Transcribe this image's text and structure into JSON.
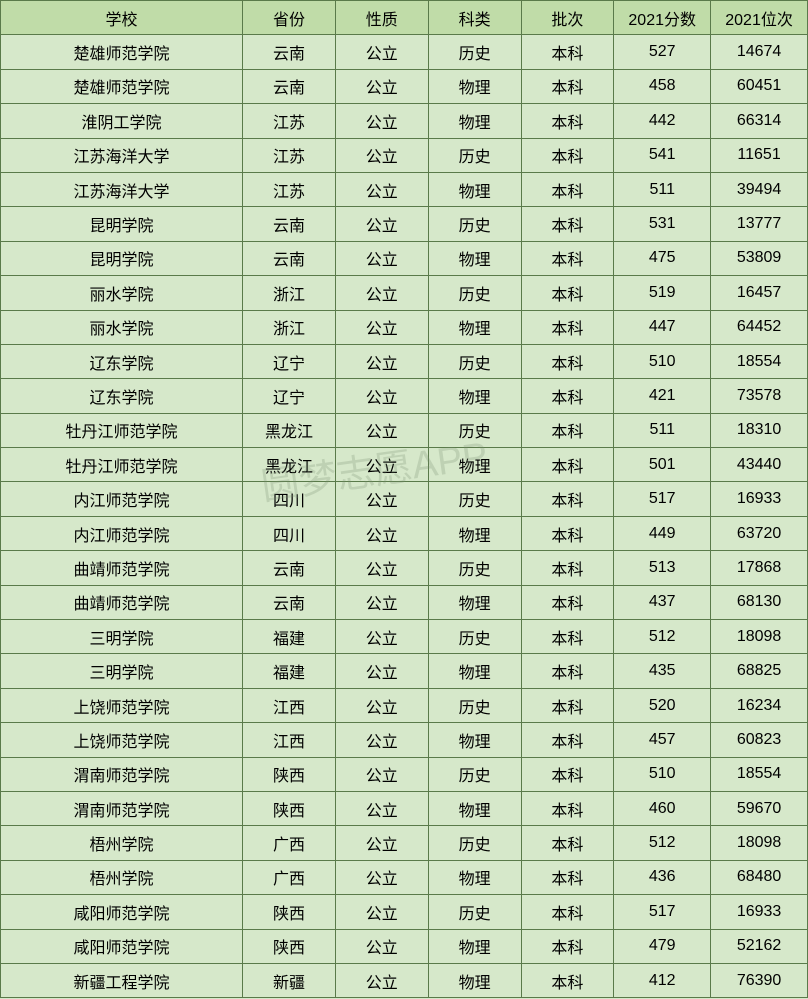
{
  "table": {
    "columns": [
      "学校",
      "省份",
      "性质",
      "科类",
      "批次",
      "2021分数",
      "2021位次"
    ],
    "column_widths": [
      "30%",
      "11.5%",
      "11.5%",
      "11.5%",
      "11.5%",
      "12%",
      "12%"
    ],
    "header_bg": "#c0dca8",
    "cell_bg": "#d6e8ca",
    "border_color": "#5a7a4a",
    "font_size": 16,
    "row_height": 34.4,
    "rows": [
      [
        "楚雄师范学院",
        "云南",
        "公立",
        "历史",
        "本科",
        "527",
        "14674"
      ],
      [
        "楚雄师范学院",
        "云南",
        "公立",
        "物理",
        "本科",
        "458",
        "60451"
      ],
      [
        "淮阴工学院",
        "江苏",
        "公立",
        "物理",
        "本科",
        "442",
        "66314"
      ],
      [
        "江苏海洋大学",
        "江苏",
        "公立",
        "历史",
        "本科",
        "541",
        "11651"
      ],
      [
        "江苏海洋大学",
        "江苏",
        "公立",
        "物理",
        "本科",
        "511",
        "39494"
      ],
      [
        "昆明学院",
        "云南",
        "公立",
        "历史",
        "本科",
        "531",
        "13777"
      ],
      [
        "昆明学院",
        "云南",
        "公立",
        "物理",
        "本科",
        "475",
        "53809"
      ],
      [
        "丽水学院",
        "浙江",
        "公立",
        "历史",
        "本科",
        "519",
        "16457"
      ],
      [
        "丽水学院",
        "浙江",
        "公立",
        "物理",
        "本科",
        "447",
        "64452"
      ],
      [
        "辽东学院",
        "辽宁",
        "公立",
        "历史",
        "本科",
        "510",
        "18554"
      ],
      [
        "辽东学院",
        "辽宁",
        "公立",
        "物理",
        "本科",
        "421",
        "73578"
      ],
      [
        "牡丹江师范学院",
        "黑龙江",
        "公立",
        "历史",
        "本科",
        "511",
        "18310"
      ],
      [
        "牡丹江师范学院",
        "黑龙江",
        "公立",
        "物理",
        "本科",
        "501",
        "43440"
      ],
      [
        "内江师范学院",
        "四川",
        "公立",
        "历史",
        "本科",
        "517",
        "16933"
      ],
      [
        "内江师范学院",
        "四川",
        "公立",
        "物理",
        "本科",
        "449",
        "63720"
      ],
      [
        "曲靖师范学院",
        "云南",
        "公立",
        "历史",
        "本科",
        "513",
        "17868"
      ],
      [
        "曲靖师范学院",
        "云南",
        "公立",
        "物理",
        "本科",
        "437",
        "68130"
      ],
      [
        "三明学院",
        "福建",
        "公立",
        "历史",
        "本科",
        "512",
        "18098"
      ],
      [
        "三明学院",
        "福建",
        "公立",
        "物理",
        "本科",
        "435",
        "68825"
      ],
      [
        "上饶师范学院",
        "江西",
        "公立",
        "历史",
        "本科",
        "520",
        "16234"
      ],
      [
        "上饶师范学院",
        "江西",
        "公立",
        "物理",
        "本科",
        "457",
        "60823"
      ],
      [
        "渭南师范学院",
        "陕西",
        "公立",
        "历史",
        "本科",
        "510",
        "18554"
      ],
      [
        "渭南师范学院",
        "陕西",
        "公立",
        "物理",
        "本科",
        "460",
        "59670"
      ],
      [
        "梧州学院",
        "广西",
        "公立",
        "历史",
        "本科",
        "512",
        "18098"
      ],
      [
        "梧州学院",
        "广西",
        "公立",
        "物理",
        "本科",
        "436",
        "68480"
      ],
      [
        "咸阳师范学院",
        "陕西",
        "公立",
        "历史",
        "本科",
        "517",
        "16933"
      ],
      [
        "咸阳师范学院",
        "陕西",
        "公立",
        "物理",
        "本科",
        "479",
        "52162"
      ],
      [
        "新疆工程学院",
        "新疆",
        "公立",
        "物理",
        "本科",
        "412",
        "76390"
      ]
    ]
  },
  "watermark": {
    "text": "圆梦志愿APP",
    "color": "rgba(120, 140, 110, 0.25)",
    "font_size": 38
  }
}
